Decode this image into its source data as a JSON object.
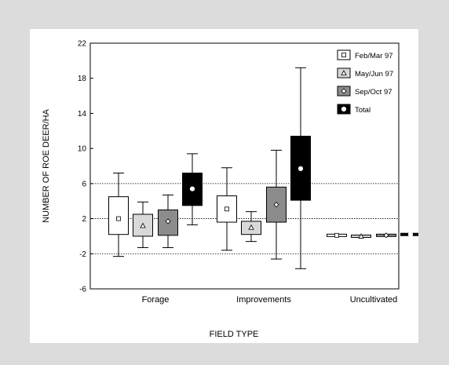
{
  "chart_data": {
    "type": "box",
    "title": "",
    "xlabel": "FIELD TYPE",
    "ylabel": "NUMBER OF ROE DEER/HA",
    "ylim": [
      -6,
      22
    ],
    "yticks": [
      -6,
      -2,
      2,
      6,
      10,
      14,
      18,
      22
    ],
    "reference_lines": [
      -2,
      2,
      6
    ],
    "categories": [
      "Forage",
      "Improvements",
      "Uncultivated"
    ],
    "legend_position": "top-right",
    "series": [
      {
        "name": "Feb/Mar 97",
        "fill": "#ffffff",
        "marker": "square",
        "boxes": [
          {
            "whisker_low": -2.3,
            "q1": 0.2,
            "center": 2.0,
            "q3": 4.5,
            "whisker_high": 7.2
          },
          {
            "whisker_low": -1.6,
            "q1": 1.6,
            "center": 3.1,
            "q3": 4.6,
            "whisker_high": 7.8
          },
          {
            "whisker_low": 0.1,
            "q1": 0.1,
            "center": 0.1,
            "q3": 0.1,
            "whisker_high": 0.1
          }
        ]
      },
      {
        "name": "May/Jun 97",
        "fill": "#d9d9d9",
        "marker": "triangle",
        "boxes": [
          {
            "whisker_low": -1.3,
            "q1": 0.0,
            "center": 1.2,
            "q3": 2.5,
            "whisker_high": 3.9
          },
          {
            "whisker_low": -0.6,
            "q1": 0.2,
            "center": 1.0,
            "q3": 1.7,
            "whisker_high": 2.8
          },
          {
            "whisker_low": 0.0,
            "q1": 0.0,
            "center": 0.0,
            "q3": 0.0,
            "whisker_high": 0.0
          }
        ]
      },
      {
        "name": "Sep/Oct 97",
        "fill": "#8c8c8c",
        "marker": "diamond",
        "boxes": [
          {
            "whisker_low": -1.3,
            "q1": 0.1,
            "center": 1.7,
            "q3": 3.0,
            "whisker_high": 4.7
          },
          {
            "whisker_low": -2.6,
            "q1": 1.6,
            "center": 3.6,
            "q3": 5.6,
            "whisker_high": 9.8
          },
          {
            "whisker_low": 0.1,
            "q1": 0.1,
            "center": 0.1,
            "q3": 0.1,
            "whisker_high": 0.1
          }
        ]
      },
      {
        "name": "Total",
        "fill": "#000000",
        "marker": "circle",
        "boxes": [
          {
            "whisker_low": 1.3,
            "q1": 3.5,
            "center": 5.4,
            "q3": 7.2,
            "whisker_high": 9.4
          },
          {
            "whisker_low": -3.7,
            "q1": 4.1,
            "center": 7.7,
            "q3": 11.4,
            "whisker_high": 19.2
          },
          {
            "whisker_low": 0.2,
            "q1": 0.2,
            "center": 0.2,
            "q3": 0.2,
            "whisker_high": 0.2
          }
        ]
      }
    ]
  }
}
